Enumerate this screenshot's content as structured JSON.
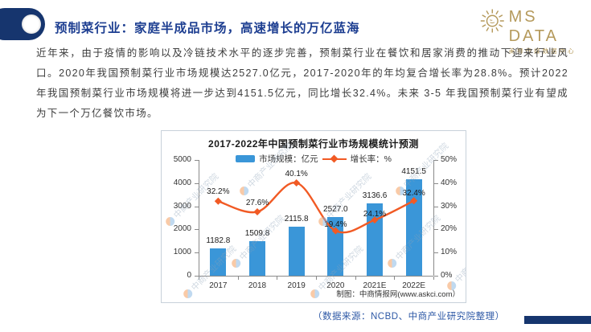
{
  "header": {
    "title": "预制菜行业：家庭半成品市场，高速增长的万亿蓝海"
  },
  "logo": {
    "name": "MS DATA",
    "subtitle": "美狮传媒数据中心",
    "color": "#b59a5c"
  },
  "body": {
    "paragraph": "近年来，由于疫情的影响以及冷链技术水平的逐步完善，预制菜行业在餐饮和居家消费的推动下迎来行业风口。2020年我国预制菜行业市场规模达2527.0亿元，2017-2020年的年均复合增长率为28.8%。预计2022年我国预制菜行业市场规模将进一步达到4151.5亿元，同比增长32.4%。未来 3-5 年我国预制菜行业有望成为下一个万亿餐饮市场。"
  },
  "chart_data": {
    "type": "bar+line",
    "title": "2017-2022年中国预制菜行业市场规模统计预测",
    "categories": [
      "2017",
      "2018",
      "2019",
      "2020",
      "2021E",
      "2022E"
    ],
    "series": [
      {
        "name": "市场规模：亿元",
        "type": "bar",
        "axis": "left",
        "color": "#3a96d8",
        "values": [
          1182.8,
          1509.8,
          2115.8,
          2527.0,
          3136.6,
          4151.5
        ]
      },
      {
        "name": "增长率：%",
        "type": "line",
        "axis": "right",
        "color": "#f15a24",
        "values": [
          32.2,
          27.6,
          40.1,
          19.4,
          24.1,
          32.4
        ],
        "point_labels": [
          "32.2%",
          "27.6%",
          "40.1%",
          "19.4%",
          "24.1%",
          "32.4%"
        ]
      }
    ],
    "left_axis": {
      "min": 0,
      "max": 5000,
      "labels": [
        "0",
        "1000",
        "2000",
        "3000",
        "4000",
        "5000"
      ]
    },
    "right_axis": {
      "min": 0,
      "max": 50,
      "labels": [
        "0%",
        "10%",
        "20%",
        "30%",
        "40%",
        "50%"
      ]
    },
    "legend_position": "top-center",
    "grid": false,
    "credit": "制图：中商情报网(www.askci.com）",
    "watermark": "中商产业研究院"
  },
  "footer": {
    "source": "（数据来源：NCBD、中商产业研究院整理）"
  },
  "colors": {
    "accent_navy": "#16356E",
    "title_blue": "#1d3e91",
    "bar_blue": "#3a96d8",
    "line_orange": "#f15a24",
    "source_blue": "#2e59a6"
  }
}
